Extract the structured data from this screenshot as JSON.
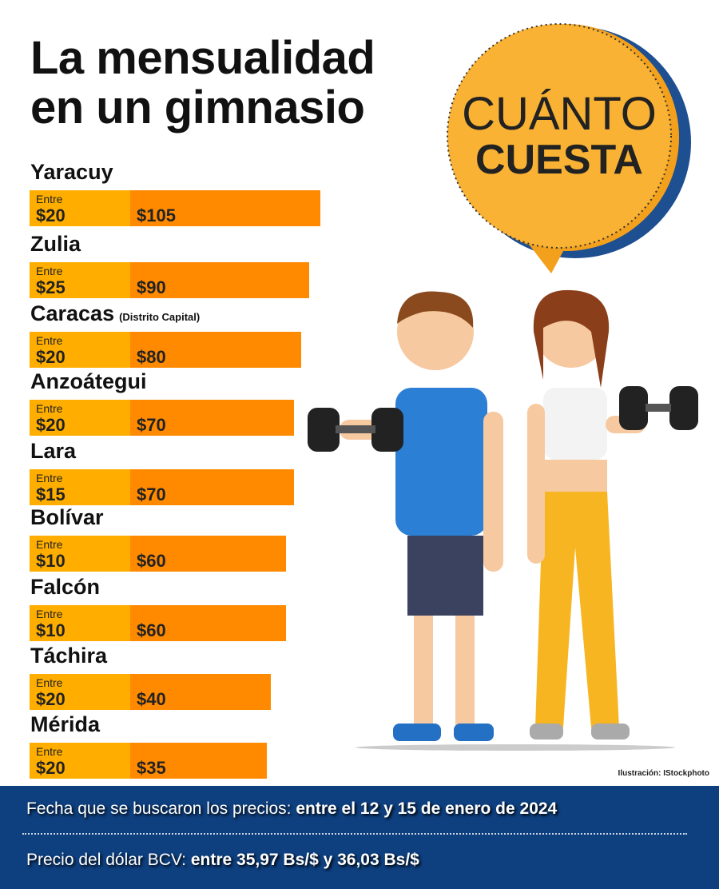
{
  "title": {
    "line1": "La mensualidad",
    "line2": "en un gimnasio"
  },
  "badge": {
    "line1": "CUÁNTO",
    "line2": "CUESTA"
  },
  "colors": {
    "bar_low": "#ffae00",
    "bar_high": "#ff8a00",
    "badge": "#f9a72b",
    "footer": "#0e3f7e"
  },
  "chart_data": {
    "type": "bar",
    "title": "La mensualidad en un gimnasio",
    "range_prefix": "Entre",
    "categories": [
      "Yaracuy",
      "Zulia",
      "Caracas",
      "Anzoátegui",
      "Lara",
      "Bolívar",
      "Falcón",
      "Táchira",
      "Mérida"
    ],
    "notes": [
      "",
      "",
      "(Distrito Capital)",
      "",
      "",
      "",
      "",
      "",
      ""
    ],
    "min_labels": [
      "$20",
      "$25",
      "$20",
      "$20",
      "$15",
      "$10",
      "$10",
      "$20",
      "$20"
    ],
    "max_labels": [
      "$105",
      "$90",
      "$80",
      "$70",
      "$70",
      "$60",
      "$60",
      "$40",
      "$35"
    ],
    "min_values": [
      20,
      25,
      20,
      20,
      15,
      10,
      10,
      20,
      20
    ],
    "max_values": [
      105,
      90,
      80,
      70,
      70,
      60,
      60,
      40,
      35
    ]
  },
  "credit": "Ilustración: IStockphoto",
  "footer": {
    "date_label": "Fecha que se buscaron los precios:",
    "date_value": "entre el 12 y 15 de enero de 2024",
    "rate_label": "Precio del dólar BCV:",
    "rate_value": "entre 35,97 Bs/$ y 36,03 Bs/$"
  }
}
